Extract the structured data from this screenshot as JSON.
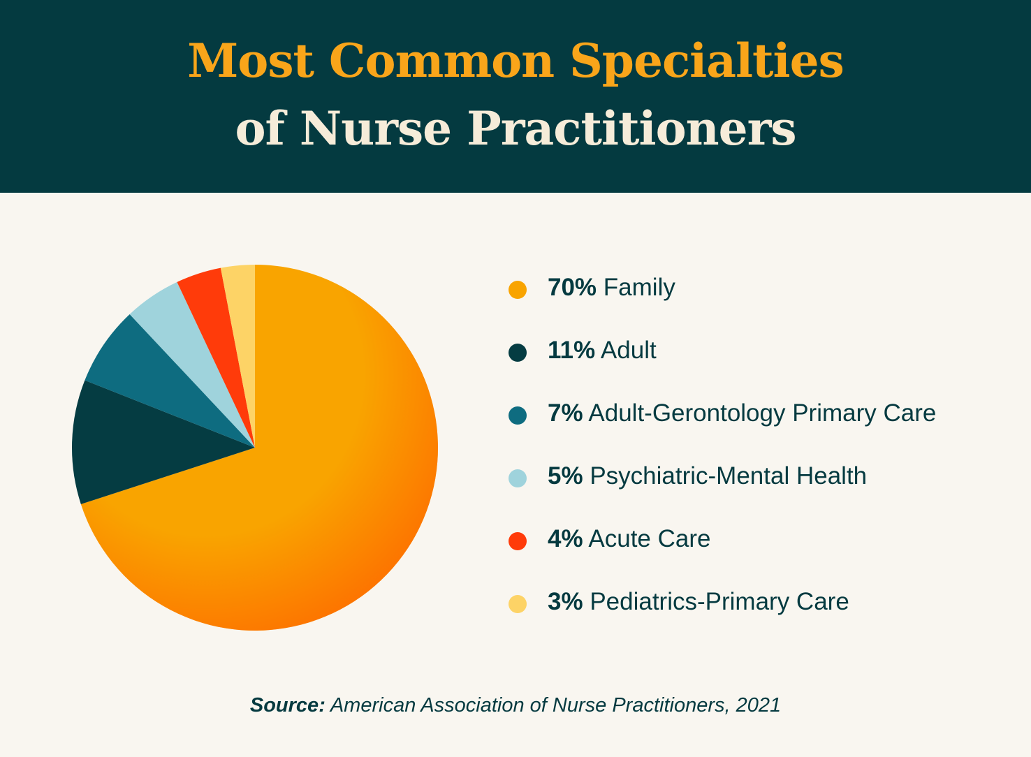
{
  "title": {
    "line1": "Most Common Specialties",
    "line2": "of Nurse Practitioners"
  },
  "chart_data": {
    "type": "pie",
    "categories": [
      "Family",
      "Adult",
      "Adult-Gerontology Primary Care",
      "Psychiatric-Mental Health",
      "Acute Care",
      "Pediatrics-Primary Care"
    ],
    "values": [
      70,
      11,
      7,
      5,
      4,
      3
    ],
    "percent_labels": [
      "70%",
      "11%",
      "7%",
      "5%",
      "4%",
      "3%"
    ],
    "colors": [
      "#f9a400",
      "#053c42",
      "#0e6c80",
      "#9fd3dc",
      "#ff3b0a",
      "#fdd366"
    ],
    "start": "12 o'clock, clockwise",
    "legend_position": "right"
  },
  "source": {
    "label": "Source:",
    "text": "American Association of Nurse Practitioners, 2021"
  },
  "colors": {
    "header_bg": "#043a40",
    "title_accent": "#f9a51a",
    "title_light": "#f6ecd9",
    "page_bg": "#f9f6f0",
    "text": "#053a40"
  }
}
